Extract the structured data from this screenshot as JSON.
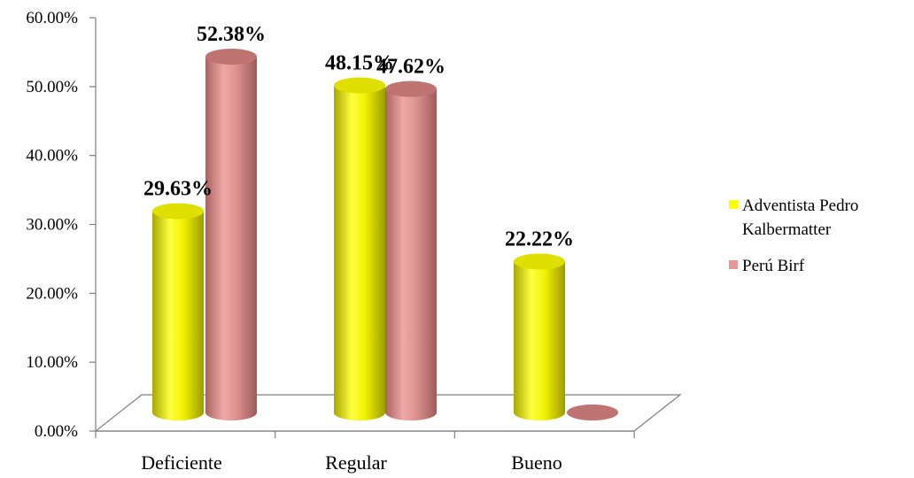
{
  "chart_data": {
    "type": "bar",
    "title": "",
    "xlabel": "",
    "ylabel": "",
    "categories": [
      "Deficiente",
      "Regular",
      "Bueno"
    ],
    "series": [
      {
        "name": "Adventista Pedro Kalbermatter",
        "name_lines": [
          "Adventista Pedro",
          "Kalbermatter"
        ],
        "values": [
          29.63,
          48.15,
          22.22
        ],
        "labels": [
          "29.63%",
          "48.15%",
          "22.22%"
        ],
        "color": "#ffff00"
      },
      {
        "name": "Perú Birf",
        "name_lines": [
          "Perú Birf"
        ],
        "values": [
          52.38,
          47.62,
          0
        ],
        "labels": [
          "52.38%",
          "47.62%",
          ""
        ],
        "color": "#e69896"
      }
    ],
    "ylim": [
      0,
      60
    ],
    "yticks": [
      "0.00%",
      "10.00%",
      "20.00%",
      "30.00%",
      "40.00%",
      "50.00%",
      "60.00%"
    ],
    "grid": false,
    "legend": "right",
    "style": "3d-cylinder"
  }
}
